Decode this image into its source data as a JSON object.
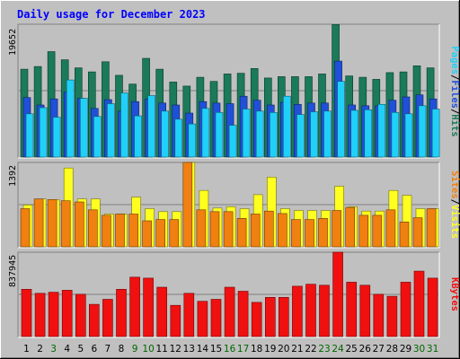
{
  "chart_data": {
    "type": "bar",
    "title": "Daily usage for December 2023",
    "days": [
      "1",
      "2",
      "3",
      "4",
      "5",
      "6",
      "7",
      "8",
      "9",
      "10",
      "11",
      "12",
      "13",
      "14",
      "15",
      "16",
      "17",
      "18",
      "19",
      "20",
      "21",
      "22",
      "23",
      "24",
      "25",
      "26",
      "27",
      "28",
      "29",
      "30",
      "31"
    ],
    "day_colors": [
      "#000000",
      "#000000",
      "#006600",
      "#000000",
      "#000000",
      "#000000",
      "#000000",
      "#000000",
      "#006600",
      "#006600",
      "#000000",
      "#000000",
      "#000000",
      "#000000",
      "#000000",
      "#006600",
      "#006600",
      "#000000",
      "#000000",
      "#000000",
      "#000000",
      "#000000",
      "#006600",
      "#006600",
      "#000000",
      "#000000",
      "#000000",
      "#000000",
      "#000000",
      "#006600",
      "#006600"
    ],
    "panels": {
      "hits": {
        "max_label": "19652",
        "max_value": 19652,
        "series": [
          {
            "name": "Hits",
            "color": "#1a7a5a",
            "values": [
              13000,
              13400,
              15600,
              14400,
              13200,
              12600,
              14100,
              12100,
              10800,
              14600,
              13000,
              11100,
              10500,
              11800,
              11200,
              12300,
              12400,
              13100,
              11700,
              11900,
              11900,
              11900,
              12300,
              19600,
              12000,
              11800,
              11500,
              12500,
              12600,
              13500,
              13200
            ]
          },
          {
            "name": "Files",
            "color": "#2050d8",
            "values": [
              8800,
              7700,
              8600,
              9600,
              8700,
              7200,
              8500,
              6800,
              8200,
              8600,
              8000,
              7700,
              6500,
              8200,
              8000,
              7900,
              9000,
              8400,
              7700,
              8100,
              7800,
              8000,
              8000,
              14200,
              7700,
              7600,
              7600,
              8400,
              8900,
              9200,
              8600
            ]
          },
          {
            "name": "Pages",
            "color": "#20d0f8",
            "values": [
              6400,
              7300,
              5900,
              11400,
              8700,
              6000,
              7900,
              9500,
              6100,
              9100,
              6800,
              5600,
              4900,
              7200,
              6600,
              4700,
              7100,
              6800,
              6600,
              9000,
              6300,
              6700,
              6800,
              11200,
              6900,
              7000,
              7800,
              6600,
              6400,
              7600,
              7100
            ]
          }
        ]
      },
      "visits": {
        "max_label": "1392",
        "max_value": 1392,
        "series": [
          {
            "name": "Visits",
            "color": "#ffff20",
            "values": [
              690,
              790,
              780,
              1300,
              790,
              790,
              540,
              540,
              820,
              630,
              580,
              580,
              1400,
              930,
              640,
              660,
              630,
              860,
              1150,
              630,
              600,
              600,
              600,
              1000,
              660,
              590,
              590,
              930,
              850,
              630,
              630
            ]
          },
          {
            "name": "Sites",
            "color": "#f08010",
            "values": [
              630,
              790,
              780,
              760,
              740,
              610,
              520,
              540,
              540,
              430,
              450,
              450,
              1400,
              610,
              580,
              580,
              470,
              540,
              590,
              550,
              450,
              450,
              470,
              600,
              650,
              520,
              520,
              610,
              410,
              480,
              630
            ]
          }
        ]
      },
      "kbytes": {
        "max_label": "837945",
        "max_value": 837945,
        "series": [
          {
            "name": "KBytes",
            "color": "#f01010",
            "values": [
              470000,
              430000,
              440000,
              460000,
              420000,
              320000,
              370000,
              470000,
              590000,
              580000,
              490000,
              310000,
              430000,
              350000,
              370000,
              490000,
              450000,
              340000,
              390000,
              390000,
              500000,
              520000,
              510000,
              850000,
              540000,
              510000,
              420000,
              400000,
              540000,
              650000,
              580000
            ]
          }
        ]
      }
    },
    "side_labels": {
      "hits": [
        {
          "text": "Pages",
          "color": "#20d0f8"
        },
        {
          "text": "/",
          "color": "#000000"
        },
        {
          "text": "Files",
          "color": "#2050d8"
        },
        {
          "text": "/",
          "color": "#000000"
        },
        {
          "text": "Hits",
          "color": "#1a7a5a"
        }
      ],
      "visits": [
        {
          "text": "Sites",
          "color": "#f08010"
        },
        {
          "text": "/",
          "color": "#000000"
        },
        {
          "text": "Visits",
          "color": "#ffff20"
        }
      ],
      "kbytes": [
        {
          "text": "KBytes",
          "color": "#f01010"
        }
      ]
    },
    "colors": {
      "background": "#c0c0c0",
      "title": "#0000ff"
    }
  }
}
